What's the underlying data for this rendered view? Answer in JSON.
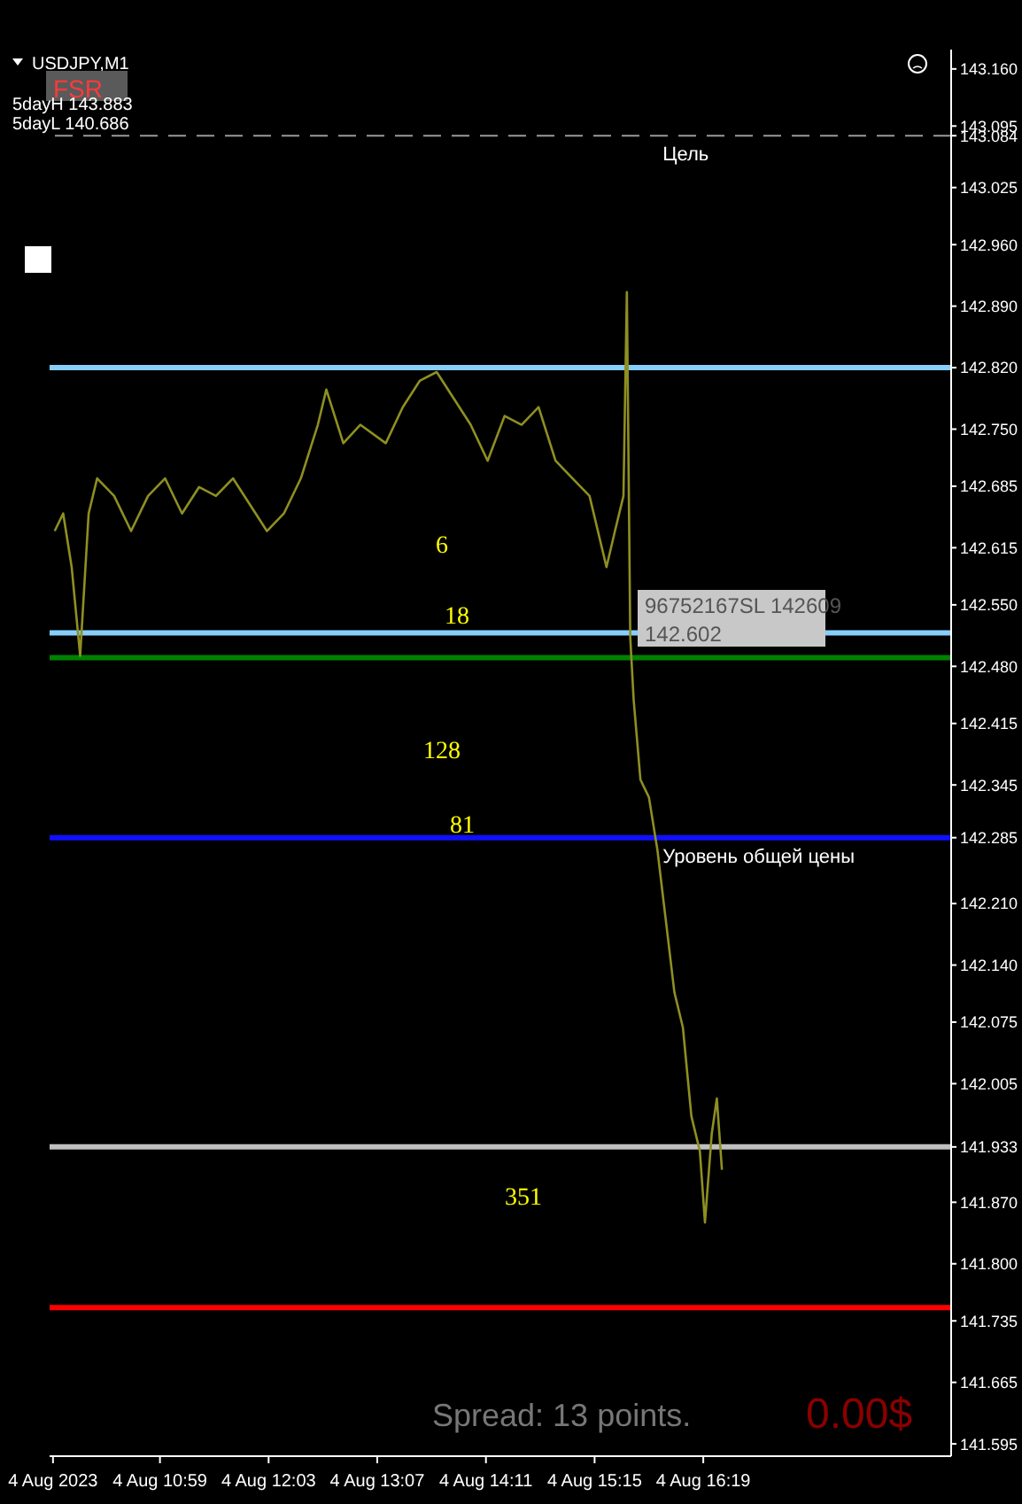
{
  "chart_data": {
    "type": "line",
    "title": "USDJPY,M1",
    "x": [
      "2023-08-04T09:57",
      "2023-08-04T10:02",
      "2023-08-04T10:07",
      "2023-08-04T10:12",
      "2023-08-04T10:17",
      "2023-08-04T10:22",
      "2023-08-04T10:32",
      "2023-08-04T10:42",
      "2023-08-04T10:52",
      "2023-08-04T11:02",
      "2023-08-04T11:12",
      "2023-08-04T11:22",
      "2023-08-04T11:32",
      "2023-08-04T11:42",
      "2023-08-04T11:52",
      "2023-08-04T12:02",
      "2023-08-04T12:12",
      "2023-08-04T12:22",
      "2023-08-04T12:32",
      "2023-08-04T12:37",
      "2023-08-04T12:47",
      "2023-08-04T12:57",
      "2023-08-04T13:12",
      "2023-08-04T13:22",
      "2023-08-04T13:32",
      "2023-08-04T13:42",
      "2023-08-04T13:52",
      "2023-08-04T14:02",
      "2023-08-04T14:12",
      "2023-08-04T14:22",
      "2023-08-04T14:32",
      "2023-08-04T14:42",
      "2023-08-04T14:52",
      "2023-08-04T15:02",
      "2023-08-04T15:12",
      "2023-08-04T15:22",
      "2023-08-04T15:27",
      "2023-08-04T15:32",
      "2023-08-04T15:34",
      "2023-08-04T15:36",
      "2023-08-04T15:38",
      "2023-08-04T15:42",
      "2023-08-04T15:47",
      "2023-08-04T15:52",
      "2023-08-04T15:57",
      "2023-08-04T16:02",
      "2023-08-04T16:07",
      "2023-08-04T16:12",
      "2023-08-04T16:17",
      "2023-08-04T16:20",
      "2023-08-04T16:24",
      "2023-08-04T16:27",
      "2023-08-04T16:30"
    ],
    "series": [
      {
        "color": "#8f8f22",
        "values": [
          142.634,
          142.654,
          142.593,
          142.492,
          142.654,
          142.694,
          142.674,
          142.634,
          142.674,
          142.694,
          142.654,
          142.684,
          142.674,
          142.694,
          142.664,
          142.634,
          142.654,
          142.694,
          142.755,
          142.795,
          142.734,
          142.755,
          142.734,
          142.775,
          142.805,
          142.815,
          142.785,
          142.755,
          142.714,
          142.765,
          142.755,
          142.775,
          142.714,
          142.694,
          142.674,
          142.593,
          142.634,
          142.674,
          142.906,
          142.513,
          142.442,
          142.351,
          142.331,
          142.271,
          142.19,
          142.109,
          142.069,
          141.968,
          141.928,
          141.847,
          141.948,
          141.988,
          141.907
        ]
      }
    ],
    "xlim": [
      "2023-08-04T09:54",
      "2023-08-04T18:45"
    ],
    "ylim": [
      141.581,
      143.182
    ],
    "xticks": [
      {
        "value": "2023-08-04T09:56",
        "label": "4 Aug 2023"
      },
      {
        "value": "2023-08-04T10:59",
        "label": "4 Aug 10:59"
      },
      {
        "value": "2023-08-04T12:03",
        "label": "4 Aug 12:03"
      },
      {
        "value": "2023-08-04T13:07",
        "label": "4 Aug 13:07"
      },
      {
        "value": "2023-08-04T14:11",
        "label": "4 Aug 14:11"
      },
      {
        "value": "2023-08-04T15:15",
        "label": "4 Aug 15:15"
      },
      {
        "value": "2023-08-04T16:19",
        "label": "4 Aug 16:19"
      }
    ],
    "yticks": [
      {
        "value": 143.16,
        "label": "143.160"
      },
      {
        "value": 143.095,
        "label": "143.095"
      },
      {
        "value": 143.084,
        "label": "143.084"
      },
      {
        "value": 143.025,
        "label": "143.025"
      },
      {
        "value": 142.96,
        "label": "142.960"
      },
      {
        "value": 142.89,
        "label": "142.890"
      },
      {
        "value": 142.82,
        "label": "142.820"
      },
      {
        "value": 142.75,
        "label": "142.750"
      },
      {
        "value": 142.685,
        "label": "142.685"
      },
      {
        "value": 142.615,
        "label": "142.615"
      },
      {
        "value": 142.55,
        "label": "142.550"
      },
      {
        "value": 142.48,
        "label": "142.480"
      },
      {
        "value": 142.415,
        "label": "142.415"
      },
      {
        "value": 142.345,
        "label": "142.345"
      },
      {
        "value": 142.285,
        "label": "142.285"
      },
      {
        "value": 142.21,
        "label": "142.210"
      },
      {
        "value": 142.14,
        "label": "142.140"
      },
      {
        "value": 142.075,
        "label": "142.075"
      },
      {
        "value": 142.005,
        "label": "142.005"
      },
      {
        "value": 141.933,
        "label": "141.933"
      },
      {
        "value": 141.87,
        "label": "141.870"
      },
      {
        "value": 141.8,
        "label": "141.800"
      },
      {
        "value": 141.735,
        "label": "141.735"
      },
      {
        "value": 141.665,
        "label": "141.665"
      },
      {
        "value": 141.595,
        "label": "141.595"
      }
    ],
    "ref_lines": [
      {
        "axis": "y",
        "value": 143.084,
        "label": "Цель",
        "color": "#9a9a9a",
        "line_style": "dashed"
      },
      {
        "axis": "y",
        "value": 142.82,
        "color": "#87cefa"
      },
      {
        "axis": "y",
        "value": 142.518,
        "color": "#87cefa"
      },
      {
        "axis": "y",
        "value": 142.49,
        "color": "#008000"
      },
      {
        "axis": "y",
        "value": 142.285,
        "label": "Уровень общей цены",
        "color": "#1010ff"
      },
      {
        "axis": "y",
        "value": 141.933,
        "color": "#c0c0c0"
      },
      {
        "axis": "y",
        "value": 141.75,
        "color": "#ff0000"
      }
    ],
    "annotations": [
      "FSR",
      "5dayH 143.883",
      "5dayL 140.686",
      "96752167SL 142609",
      "142.602",
      "Spread: 13 points.",
      "0.00$",
      "6",
      "18",
      "128",
      "81",
      "351"
    ]
  }
}
